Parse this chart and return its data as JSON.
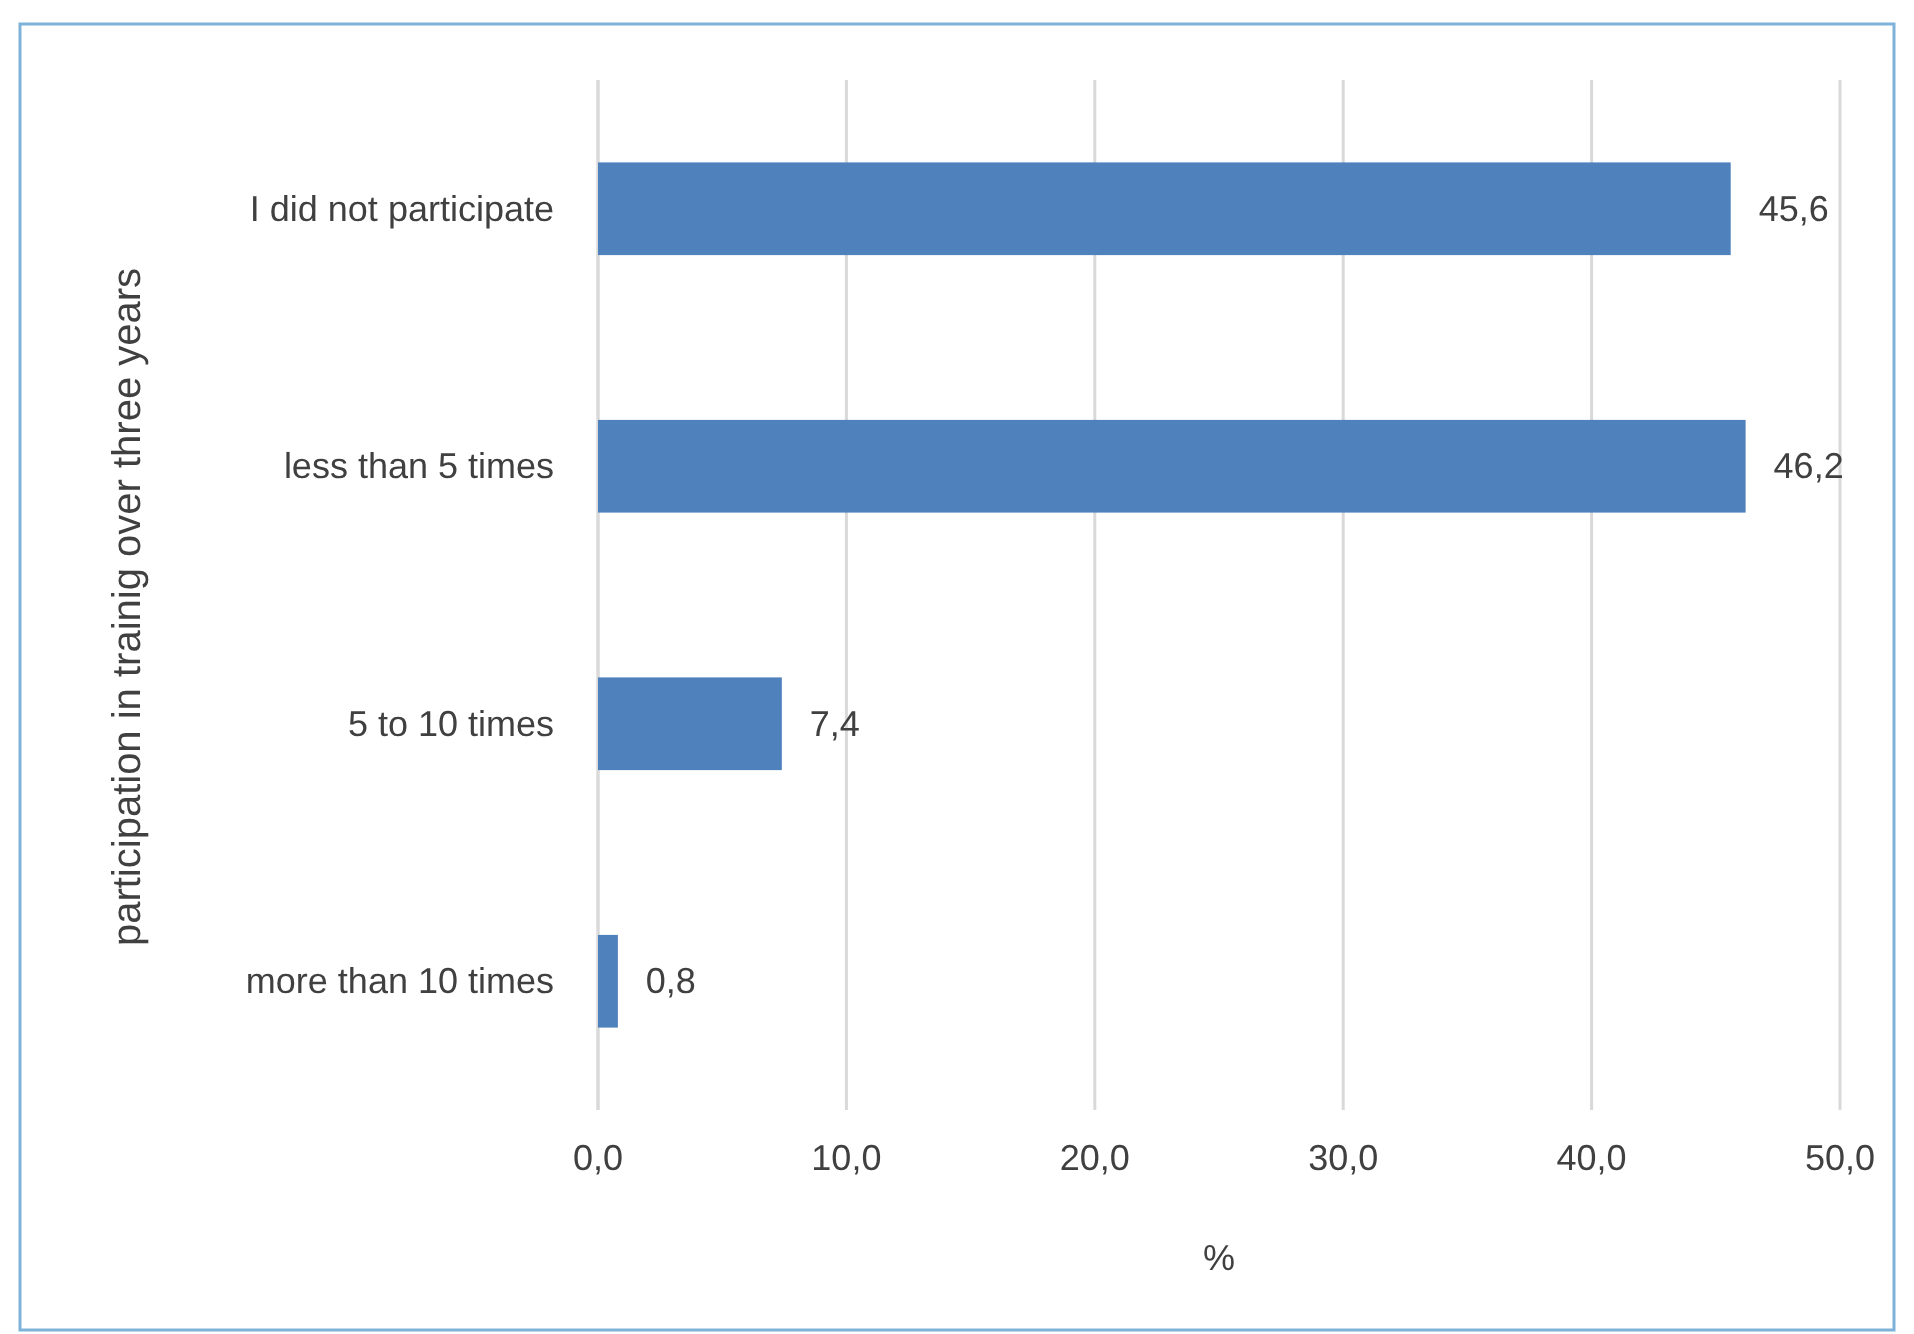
{
  "chart_data": {
    "type": "bar",
    "orientation": "horizontal",
    "xlabel": "%",
    "ylabel": "participation in trainig over three years",
    "categories": [
      "I did not participate",
      "less than  5 times",
      "5 to 10 times",
      "more than 10 times"
    ],
    "values": [
      45.6,
      46.2,
      7.4,
      0.8
    ],
    "value_labels": [
      "45,6",
      "46,2",
      "7,4",
      "0,8"
    ],
    "color": "#4f81bd",
    "xlim": [
      0,
      50
    ],
    "xticks": [
      {
        "value": 0,
        "label": "0,0"
      },
      {
        "value": 10,
        "label": "10,0"
      },
      {
        "value": 20,
        "label": "20,0"
      },
      {
        "value": 30,
        "label": "30,0"
      },
      {
        "value": 40,
        "label": "40,0"
      },
      {
        "value": 50,
        "label": "50,0"
      }
    ],
    "grid": "x"
  }
}
